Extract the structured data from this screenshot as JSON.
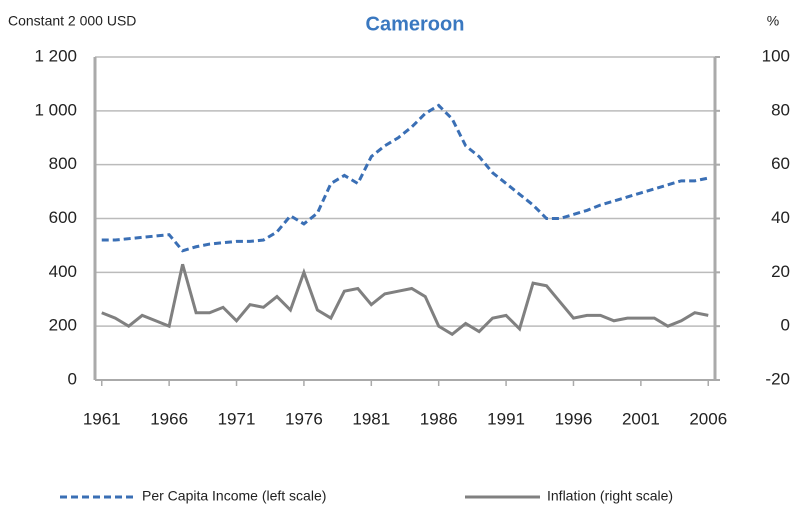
{
  "chart_data": {
    "type": "line",
    "title": "Cameroon",
    "y_label": "Constant 2 000 USD",
    "y2_label": "%",
    "x": [
      1961,
      1962,
      1963,
      1964,
      1965,
      1966,
      1967,
      1968,
      1969,
      1970,
      1971,
      1972,
      1973,
      1974,
      1975,
      1976,
      1977,
      1978,
      1979,
      1980,
      1981,
      1982,
      1983,
      1984,
      1985,
      1986,
      1987,
      1988,
      1989,
      1990,
      1991,
      1992,
      1993,
      1994,
      1995,
      1996,
      1997,
      1998,
      1999,
      2000,
      2001,
      2002,
      2003,
      2004,
      2005,
      2006
    ],
    "xlim": [
      1960.5,
      2006.5
    ],
    "xticks": [
      1961,
      1966,
      1971,
      1976,
      1981,
      1986,
      1991,
      1996,
      2001,
      2006
    ],
    "ylim": [
      0,
      1200
    ],
    "yticks": [
      0,
      200,
      400,
      600,
      800,
      {
        "value": 1000,
        "label": "1 000"
      },
      {
        "value": 1200,
        "label": "1 200"
      }
    ],
    "y2lim": [
      -20,
      100
    ],
    "y2ticks": [
      -20,
      0,
      20,
      40,
      60,
      80,
      100
    ],
    "grid": true,
    "series": [
      {
        "name": "Per Capita Income (left scale)",
        "color": "#3a6fb5",
        "dashed": true,
        "values": [
          520,
          520,
          525,
          530,
          535,
          540,
          480,
          495,
          505,
          510,
          515,
          515,
          520,
          550,
          610,
          580,
          620,
          730,
          760,
          730,
          830,
          870,
          900,
          940,
          990,
          1020,
          970,
          870,
          830,
          770,
          730,
          690,
          650,
          600,
          600,
          615,
          630,
          650,
          665,
          680,
          695,
          710,
          725,
          740,
          740,
          750
        ]
      },
      {
        "name": "Inflation (right scale)",
        "color": "#808080",
        "axis": "y2",
        "values": [
          5,
          3,
          0,
          4,
          2,
          0,
          23,
          5,
          5,
          7,
          2,
          8,
          7,
          11,
          6,
          20,
          6,
          3,
          13,
          14,
          8,
          12,
          13,
          14,
          11,
          0,
          -3,
          1,
          -2,
          3,
          4,
          -1,
          16,
          15,
          9,
          3,
          4,
          4,
          2,
          3,
          3,
          3,
          0,
          2,
          5,
          4
        ]
      }
    ]
  }
}
